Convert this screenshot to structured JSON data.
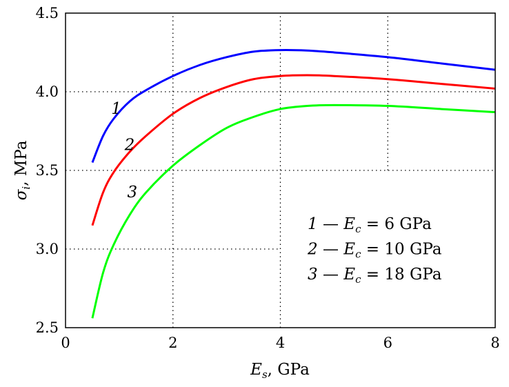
{
  "chart_data": {
    "type": "line",
    "xlabel": "E_s, GPa",
    "xlabel_var": "E",
    "xlabel_sub": "s",
    "xlabel_unit": ", GPa",
    "ylabel_var": "σ",
    "ylabel_sub": "i",
    "ylabel_unit": ", MPa",
    "xlim": [
      0,
      8
    ],
    "ylim": [
      2.5,
      4.5
    ],
    "xticks": [
      "0",
      "2",
      "4",
      "6",
      "8"
    ],
    "yticks": [
      "2.5",
      "3.0",
      "3.5",
      "4.0",
      "4.5"
    ],
    "grid": "dotted, partial",
    "grid_segments": [
      {
        "x": [
          2,
          2
        ],
        "y": [
          2.5,
          4.5
        ]
      },
      {
        "x": [
          4,
          4
        ],
        "y": [
          2.5,
          4.5
        ]
      },
      {
        "x": [
          6,
          6
        ],
        "y": [
          3.5,
          4.5
        ]
      },
      {
        "x": [
          0,
          8
        ],
        "y": [
          4.0,
          4.0
        ]
      },
      {
        "x": [
          0,
          8
        ],
        "y": [
          3.5,
          3.5
        ]
      },
      {
        "x": [
          0,
          4
        ],
        "y": [
          3.0,
          3.0
        ]
      }
    ],
    "series": [
      {
        "name": "1",
        "color": "#0000ff",
        "x": [
          0.5,
          0.7,
          0.9,
          1.2,
          1.5,
          2.0,
          2.5,
          3.0,
          3.5,
          4.0,
          4.5,
          5.0,
          6.0,
          7.0,
          8.0
        ],
        "y": [
          3.55,
          3.72,
          3.83,
          3.94,
          4.01,
          4.1,
          4.17,
          4.22,
          4.255,
          4.265,
          4.262,
          4.25,
          4.22,
          4.18,
          4.14
        ]
      },
      {
        "name": "2",
        "color": "#ff0000",
        "x": [
          0.5,
          0.7,
          0.9,
          1.2,
          1.5,
          2.0,
          2.5,
          3.0,
          3.5,
          4.0,
          4.5,
          5.0,
          6.0,
          7.0,
          8.0
        ],
        "y": [
          3.15,
          3.36,
          3.49,
          3.62,
          3.72,
          3.86,
          3.96,
          4.03,
          4.08,
          4.1,
          4.105,
          4.1,
          4.08,
          4.05,
          4.02
        ]
      },
      {
        "name": "3",
        "color": "#00ff00",
        "x": [
          0.5,
          0.7,
          0.9,
          1.2,
          1.5,
          2.0,
          2.5,
          3.0,
          3.5,
          4.0,
          4.5,
          5.0,
          6.0,
          7.0,
          8.0
        ],
        "y": [
          2.56,
          2.85,
          3.03,
          3.22,
          3.36,
          3.53,
          3.66,
          3.77,
          3.84,
          3.89,
          3.91,
          3.915,
          3.91,
          3.89,
          3.87
        ]
      }
    ],
    "curve_labels": [
      {
        "text": "1",
        "x": 0.85,
        "y": 3.86
      },
      {
        "text": "2",
        "x": 1.1,
        "y": 3.63
      },
      {
        "text": "3",
        "x": 1.15,
        "y": 3.33
      }
    ],
    "legend": {
      "placement": "bottom-right",
      "entries": [
        {
          "num": "1",
          "dash": "—",
          "var": "E",
          "sub": "c",
          "rest": "= 6 GPa"
        },
        {
          "num": "2",
          "dash": "—",
          "var": "E",
          "sub": "c",
          "rest": "= 10 GPa"
        },
        {
          "num": "3",
          "dash": "—",
          "var": "E",
          "sub": "c",
          "rest": "= 18 GPa"
        }
      ]
    }
  }
}
